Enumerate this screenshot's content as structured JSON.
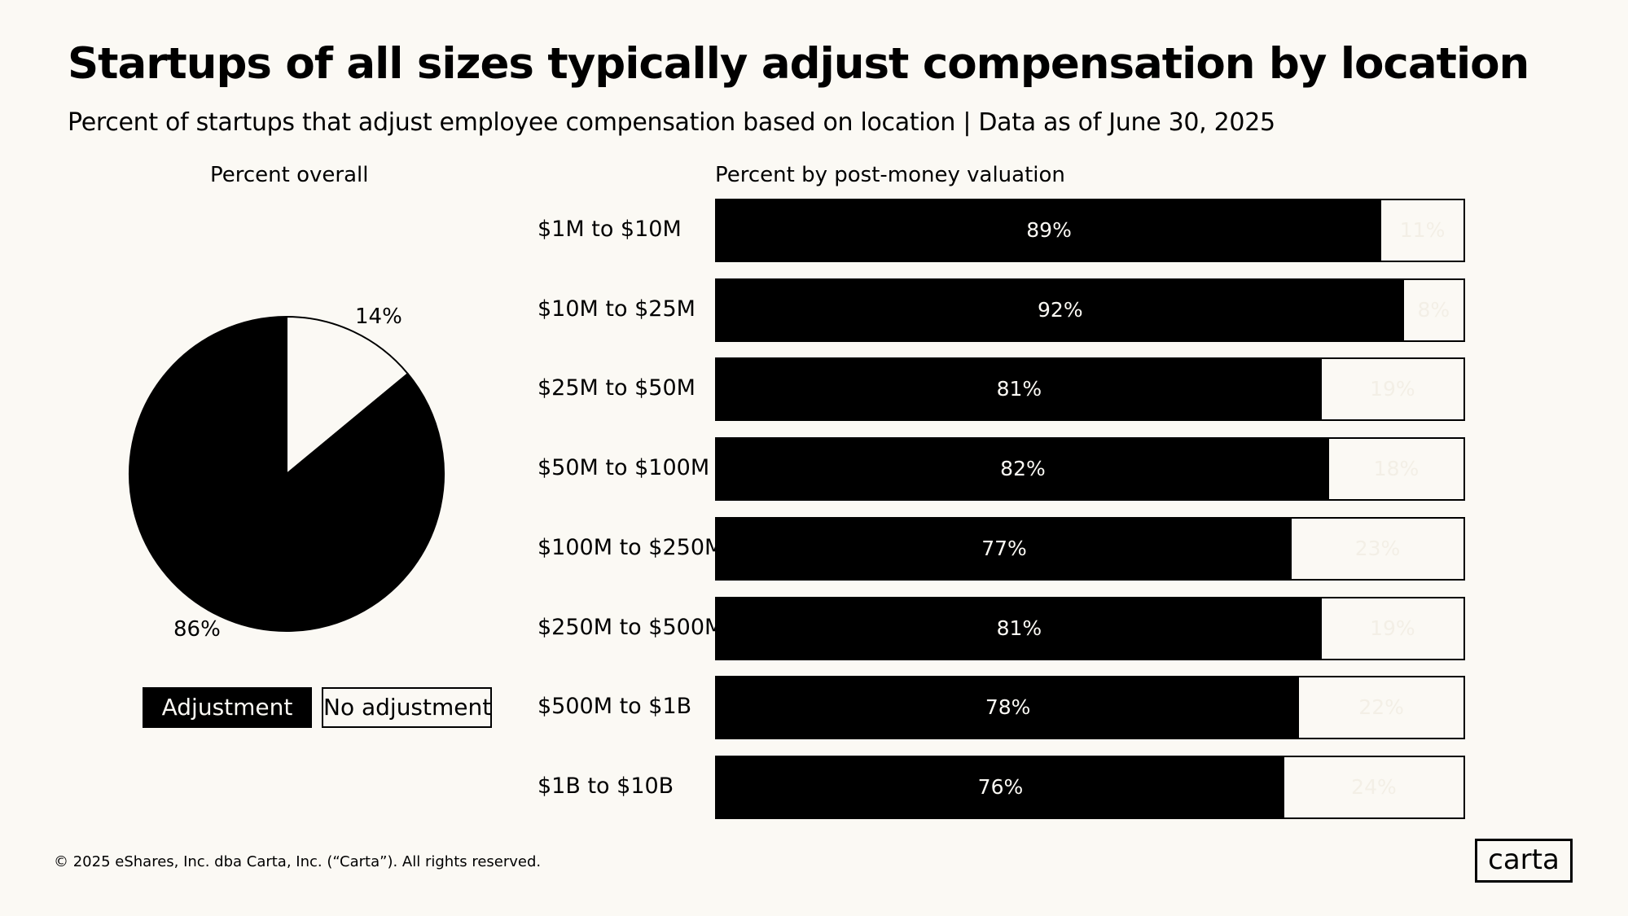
{
  "title": "Startups of all sizes typically adjust compensation by location",
  "subtitle": "Percent of startups that adjust employee compensation based on location | Data as of June 30, 2025",
  "footer": "© 2025 eShares, Inc. dba Carta, Inc. (“Carta”). All rights reserved.",
  "logo": "carta",
  "colors": {
    "adjustment": "#000000",
    "no_adjustment": "#fbf9f4",
    "background": "#fbf9f4"
  },
  "chart_data": [
    {
      "type": "pie",
      "title": "Percent overall",
      "slices": [
        {
          "name": "Adjustment",
          "value": 86,
          "label": "86%"
        },
        {
          "name": "No adjustment",
          "value": 14,
          "label": "14%"
        }
      ],
      "legend": [
        "Adjustment",
        "No adjustment"
      ],
      "legend_position": "bottom"
    },
    {
      "type": "bar",
      "orientation": "horizontal",
      "stacked": true,
      "title": "Percent by post-money valuation",
      "categories": [
        "$1M to $10M",
        "$10M to $25M",
        "$25M to $50M",
        "$50M to $100M",
        "$100M to $250M",
        "$250M to $500M",
        "$500M to $1B",
        "$1B to $10B"
      ],
      "series": [
        {
          "name": "Adjustment",
          "values": [
            89,
            92,
            81,
            82,
            77,
            81,
            78,
            76
          ],
          "labels": [
            "89%",
            "92%",
            "81%",
            "82%",
            "77%",
            "81%",
            "78%",
            "76%"
          ]
        },
        {
          "name": "No adjustment",
          "values": [
            11,
            8,
            19,
            18,
            23,
            19,
            22,
            24
          ],
          "labels": [
            "11%",
            "8%",
            "19%",
            "18%",
            "23%",
            "19%",
            "22%",
            "24%"
          ]
        }
      ],
      "xlim": [
        0,
        100
      ]
    }
  ]
}
